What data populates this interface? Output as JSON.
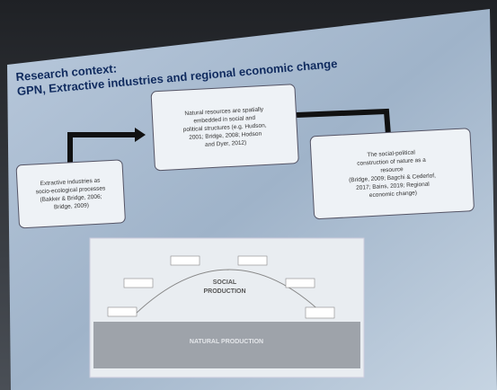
{
  "slide": {
    "title": "Research context:",
    "subtitle": "GPN, Extractive industries and regional economic change",
    "boxes": [
      {
        "lines": [
          "Extractive industries as",
          "socio-ecological processes",
          "(Bakker & Bridge, 2006;",
          "Bridge, 2009)"
        ]
      },
      {
        "lines": [
          "Natural resources are spatially",
          "embedded in social and",
          "political structures (e.g. Hudson,",
          "2001; Bridge, 2008; Hodson",
          "and Dyer, 2012)"
        ]
      },
      {
        "lines": [
          "The social-political",
          "construction of nature as a",
          "resource",
          "(Bridge, 2009; Bagchi & Cederlof,",
          "2017; Bains, 2019; Regional",
          "economic change)"
        ]
      }
    ],
    "diagram": {
      "top_label": "SOCIAL",
      "top_label_2": "PRODUCTION",
      "bottom_label": "NATURAL PRODUCTION"
    }
  }
}
